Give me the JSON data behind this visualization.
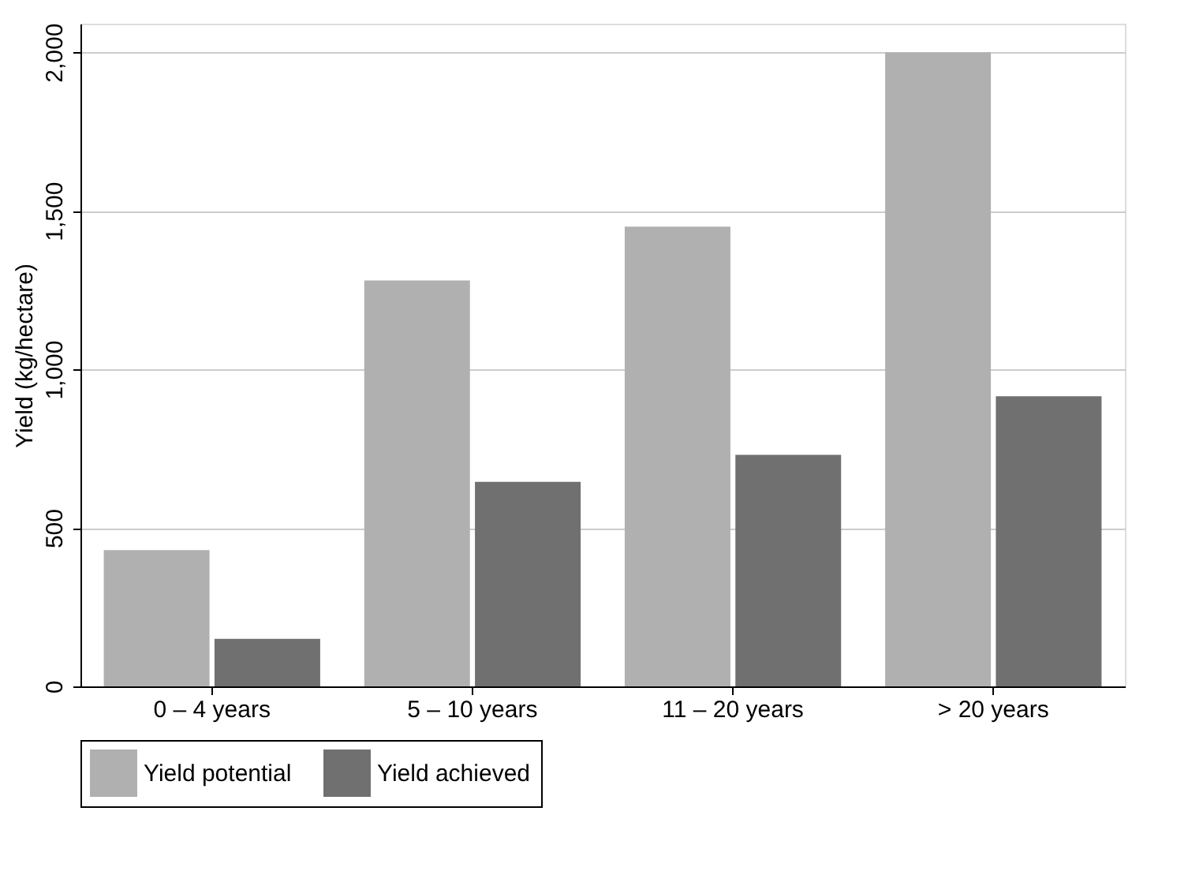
{
  "chart_data": {
    "type": "bar",
    "ylabel": "Yield (kg/hectare)",
    "categories": [
      "0 – 4 years",
      "5 – 10 years",
      "11 – 20 years",
      "> 20 years"
    ],
    "series": [
      {
        "name": "Yield potential",
        "color": "#b0b0b0",
        "values": [
          430,
          1280,
          1450,
          2000
        ]
      },
      {
        "name": "Yield achieved",
        "color": "#707070",
        "values": [
          150,
          645,
          730,
          915
        ]
      }
    ],
    "ylim": [
      0,
      2090
    ],
    "yticks": [
      0,
      {
        "value": 500,
        "label": "500"
      },
      {
        "value": 1000,
        "label": "1,000"
      },
      {
        "value": 1500,
        "label": "1,500"
      },
      {
        "value": 2000,
        "label": "2,000"
      }
    ],
    "grid": "y",
    "legend": "bottom"
  }
}
